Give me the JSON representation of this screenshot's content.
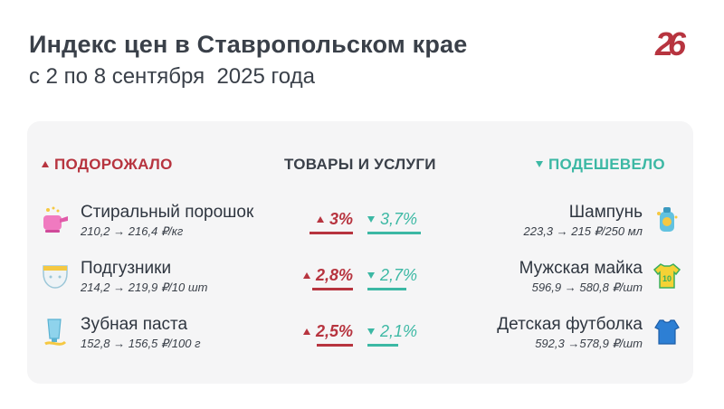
{
  "header": {
    "title": "Индекс цен в Ставропольском крае",
    "subtitle": "с 2 по 8 сентября  2025 года",
    "logo": "26"
  },
  "columns": {
    "up": "ПОДОРОЖАЛО",
    "middle": "ТОВАРЫ И УСЛУГИ",
    "down": "ПОДЕШЕВЕЛО"
  },
  "colors": {
    "up": "#b7343f",
    "down": "#3cb8a4",
    "card": "#f5f5f6"
  },
  "rows": [
    {
      "up_item": {
        "name": "Стиральный порошок",
        "price": "210,2 → 216,4 ₽/кг",
        "icon": "detergent-icon"
      },
      "up_pct": "3%",
      "up_value": 3,
      "down_pct": "3,7%",
      "down_value": 3.7,
      "down_item": {
        "name": "Шампунь",
        "price": "223,3 → 215 ₽/250 мл",
        "icon": "shampoo-icon"
      }
    },
    {
      "up_item": {
        "name": "Подгузники",
        "price": "214,2 → 219,9 ₽/10 шт",
        "icon": "diaper-icon"
      },
      "up_pct": "2,8%",
      "up_value": 2.8,
      "down_pct": "2,7%",
      "down_value": 2.7,
      "down_item": {
        "name": "Мужская майка",
        "price": "596,9 → 580,8 ₽/шт",
        "icon": "jersey-icon"
      }
    },
    {
      "up_item": {
        "name": "Зубная паста",
        "price": "152,8 → 156,5 ₽/100 г",
        "icon": "toothpaste-icon"
      },
      "up_pct": "2,5%",
      "up_value": 2.5,
      "down_pct": "2,1%",
      "down_value": 2.1,
      "down_item": {
        "name": "Детская футболка",
        "price": "592,3 →578,9 ₽/шт",
        "icon": "tshirt-icon"
      }
    }
  ]
}
